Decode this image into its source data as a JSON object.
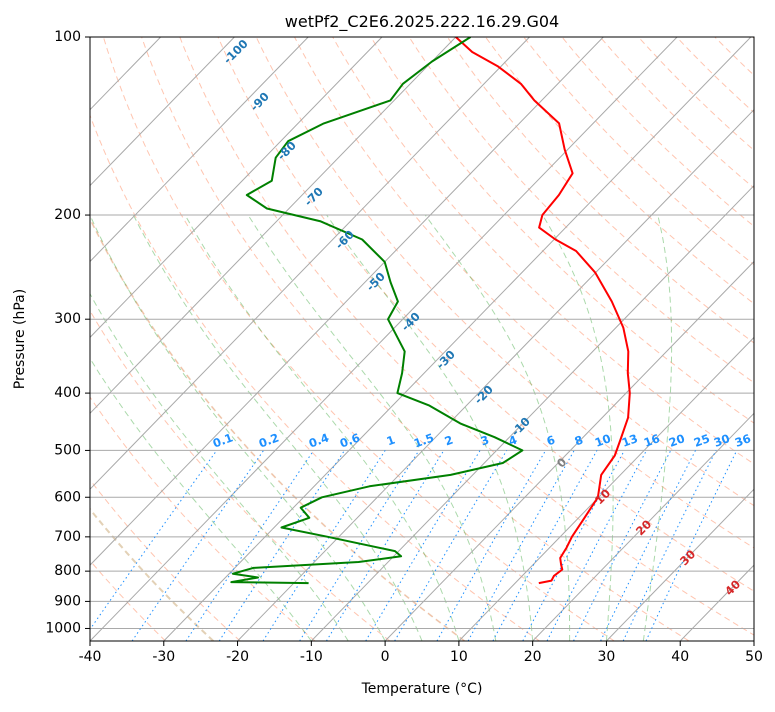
{
  "chart_data": {
    "type": "line",
    "subtype": "skew-t log-p diagram",
    "title": "wetPf2_C2E6.2025.222.16.29.G04",
    "xlabel": "Temperature (°C)",
    "ylabel": "Pressure (hPa)",
    "xlim": [
      -40,
      50
    ],
    "ylim": [
      1050,
      100
    ],
    "y_scale": "log",
    "x_ticks": [
      -40,
      -30,
      -20,
      -10,
      0,
      10,
      20,
      30,
      40,
      50
    ],
    "y_ticks": [
      100,
      200,
      300,
      400,
      500,
      600,
      700,
      800,
      900,
      1000
    ],
    "grid": true,
    "isotherm_labels": [
      "-100",
      "-90",
      "-80",
      "-70",
      "-60",
      "-50",
      "-40",
      "-30",
      "-20",
      "-10",
      "0",
      "10",
      "20",
      "30",
      "40"
    ],
    "mixing_ratio_labels": [
      "0.1",
      "0.2",
      "0.4",
      "0.6",
      "1",
      "1.5",
      "2",
      "3",
      "4",
      "6",
      "8",
      "10",
      "13",
      "16",
      "20",
      "25",
      "30",
      "36"
    ],
    "series": [
      {
        "name": "temperature",
        "color": "#ff0000",
        "points": [
          {
            "p": 838,
            "t": 13.2
          },
          {
            "p": 830,
            "t": 14.6
          },
          {
            "p": 815,
            "t": 14.3
          },
          {
            "p": 795,
            "t": 14.6
          },
          {
            "p": 780,
            "t": 13.8
          },
          {
            "p": 760,
            "t": 12.8
          },
          {
            "p": 730,
            "t": 12.3
          },
          {
            "p": 700,
            "t": 11.6
          },
          {
            "p": 650,
            "t": 10.8
          },
          {
            "p": 600,
            "t": 9.9
          },
          {
            "p": 550,
            "t": 7.4
          },
          {
            "p": 510,
            "t": 6.7
          },
          {
            "p": 480,
            "t": 5.4
          },
          {
            "p": 440,
            "t": 3.5
          },
          {
            "p": 400,
            "t": 0.5
          },
          {
            "p": 370,
            "t": -2.4
          },
          {
            "p": 340,
            "t": -5.2
          },
          {
            "p": 310,
            "t": -9.0
          },
          {
            "p": 280,
            "t": -14.0
          },
          {
            "p": 250,
            "t": -20.1
          },
          {
            "p": 230,
            "t": -25.5
          },
          {
            "p": 220,
            "t": -29.8
          },
          {
            "p": 210,
            "t": -33.6
          },
          {
            "p": 200,
            "t": -34.8
          },
          {
            "p": 185,
            "t": -35.2
          },
          {
            "p": 170,
            "t": -36.2
          },
          {
            "p": 155,
            "t": -40.4
          },
          {
            "p": 140,
            "t": -44.6
          },
          {
            "p": 128,
            "t": -51.0
          },
          {
            "p": 120,
            "t": -55.0
          },
          {
            "p": 112,
            "t": -60.5
          },
          {
            "p": 106,
            "t": -65.8
          },
          {
            "p": 100,
            "t": -70.0
          }
        ]
      },
      {
        "name": "dewpoint",
        "color": "#008000",
        "points": [
          {
            "p": 838,
            "t": -18.0
          },
          {
            "p": 835,
            "t": -28.6
          },
          {
            "p": 820,
            "t": -25.6
          },
          {
            "p": 808,
            "t": -29.5
          },
          {
            "p": 790,
            "t": -27.5
          },
          {
            "p": 772,
            "t": -14.0
          },
          {
            "p": 755,
            "t": -9.0
          },
          {
            "p": 740,
            "t": -10.5
          },
          {
            "p": 700,
            "t": -21.5
          },
          {
            "p": 675,
            "t": -29.0
          },
          {
            "p": 650,
            "t": -26.5
          },
          {
            "p": 625,
            "t": -29.0
          },
          {
            "p": 600,
            "t": -27.5
          },
          {
            "p": 575,
            "t": -22.5
          },
          {
            "p": 550,
            "t": -13.0
          },
          {
            "p": 525,
            "t": -7.5
          },
          {
            "p": 500,
            "t": -6.5
          },
          {
            "p": 475,
            "t": -12.0
          },
          {
            "p": 450,
            "t": -18.5
          },
          {
            "p": 420,
            "t": -25.0
          },
          {
            "p": 400,
            "t": -31.0
          },
          {
            "p": 370,
            "t": -33.0
          },
          {
            "p": 340,
            "t": -35.5
          },
          {
            "p": 300,
            "t": -42.0
          },
          {
            "p": 280,
            "t": -43.0
          },
          {
            "p": 260,
            "t": -46.5
          },
          {
            "p": 240,
            "t": -50.0
          },
          {
            "p": 220,
            "t": -56.0
          },
          {
            "p": 205,
            "t": -64.0
          },
          {
            "p": 195,
            "t": -73.0
          },
          {
            "p": 185,
            "t": -77.5
          },
          {
            "p": 175,
            "t": -76.0
          },
          {
            "p": 160,
            "t": -78.5
          },
          {
            "p": 150,
            "t": -79.0
          },
          {
            "p": 140,
            "t": -76.5
          },
          {
            "p": 128,
            "t": -70.5
          },
          {
            "p": 120,
            "t": -71.0
          },
          {
            "p": 110,
            "t": -70.0
          },
          {
            "p": 100,
            "t": -68.0
          }
        ]
      }
    ],
    "colors": {
      "isotherm_label": "#1f77b4",
      "mixing_ratio": "#1e90ff",
      "dry_adiabat": "#ff7f50",
      "moist_adiabat": "#2ca02c",
      "theta_e_label_warm": "#d62728",
      "theta_e_label_zero": "#808080",
      "grid": "#a9a9a9"
    }
  }
}
